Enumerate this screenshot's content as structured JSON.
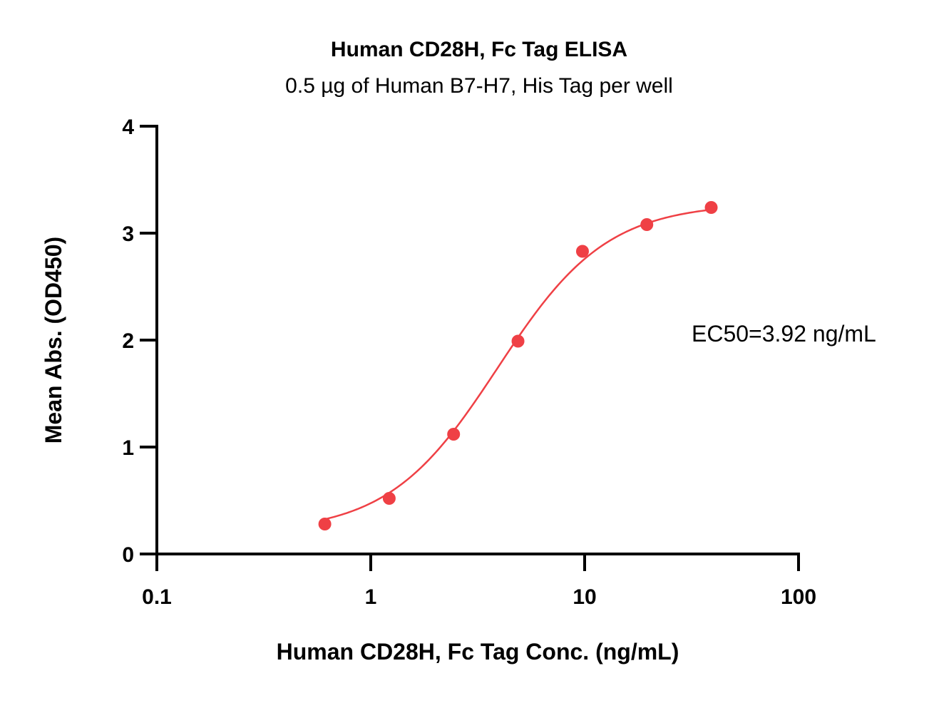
{
  "chart_data": {
    "type": "scatter",
    "title": "Human CD28H, Fc Tag ELISA",
    "subtitle": "0.5 µg of Human B7-H7, His Tag per well",
    "xlabel": "Human CD28H, Fc Tag Conc. (ng/mL)",
    "ylabel": "Mean Abs. (OD450)",
    "x_scale": "log",
    "xlim": [
      0.1,
      100
    ],
    "ylim": [
      0,
      4
    ],
    "x_ticks": [
      0.1,
      1,
      10,
      100
    ],
    "x_tick_labels": [
      "0.1",
      "1",
      "10",
      "100"
    ],
    "y_ticks": [
      0,
      1,
      2,
      3,
      4
    ],
    "y_tick_labels": [
      "0",
      "1",
      "2",
      "3",
      "4"
    ],
    "grid": false,
    "color": "#ef4045",
    "annotation": "EC50=3.92 ng/mL",
    "series": [
      {
        "x": [
          0.61,
          1.22,
          2.44,
          4.88,
          9.77,
          19.53,
          39.06
        ],
        "y": [
          0.28,
          0.52,
          1.12,
          1.99,
          2.83,
          3.08,
          3.24
        ]
      }
    ],
    "fit": {
      "type": "4PL",
      "bottom": 0.2,
      "top": 3.28,
      "ec50": 3.92,
      "hill": 1.7
    }
  }
}
